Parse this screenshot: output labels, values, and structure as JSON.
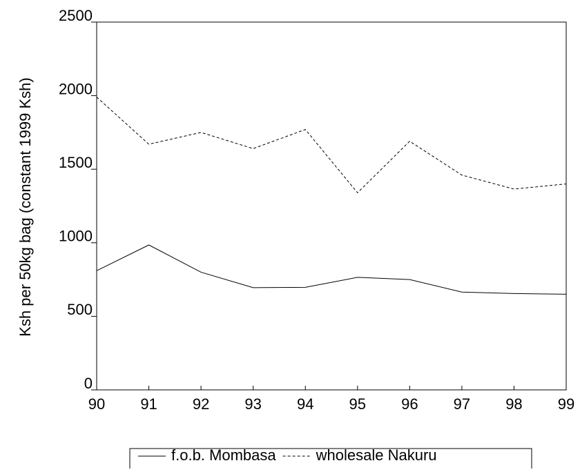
{
  "chart_data": {
    "type": "line",
    "y_label": "Ksh per 50kg bag (constant 1999 Ksh)",
    "x": [
      90,
      91,
      92,
      93,
      94,
      95,
      96,
      97,
      98,
      99
    ],
    "xlim": [
      90,
      99
    ],
    "xticks": [
      90,
      91,
      92,
      93,
      94,
      95,
      96,
      97,
      98,
      99
    ],
    "ylim": [
      0,
      2500
    ],
    "yticks": [
      0,
      500,
      1000,
      1500,
      2000,
      2500
    ],
    "legend": "bottom",
    "series": [
      {
        "name": "f.o.b. Mombasa",
        "color": "#000000",
        "dash": "solid",
        "values": [
          810,
          985,
          800,
          695,
          697,
          765,
          750,
          665,
          655,
          650
        ]
      },
      {
        "name": "wholesale Nakuru",
        "color": "#000000",
        "dash": "dashed",
        "values": [
          1990,
          1670,
          1750,
          1640,
          1770,
          1340,
          1690,
          1460,
          1365,
          1400
        ]
      }
    ]
  }
}
